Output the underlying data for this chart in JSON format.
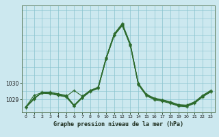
{
  "title": "Graphe pression niveau de la mer (hPa)",
  "bg_color": "#cce8ef",
  "grid_color": "#89c4cf",
  "line_color": "#2d6b2d",
  "xlim": [
    -0.5,
    23.5
  ],
  "ylim": [
    1028.2,
    1034.8
  ],
  "yticks": [
    1029,
    1030
  ],
  "xticks": [
    0,
    1,
    2,
    3,
    4,
    5,
    6,
    7,
    8,
    9,
    10,
    11,
    12,
    13,
    14,
    15,
    16,
    17,
    18,
    19,
    20,
    21,
    22,
    23
  ],
  "series": [
    [
      1028.5,
      1029.0,
      1029.45,
      1029.45,
      1029.35,
      1029.25,
      1028.65,
      1029.15,
      1029.55,
      1029.75,
      1031.6,
      1033.05,
      1033.7,
      1032.45,
      1030.0,
      1029.32,
      1029.08,
      1028.98,
      1028.85,
      1028.68,
      1028.65,
      1028.85,
      1029.25,
      1029.55
    ],
    [
      1028.55,
      1029.05,
      1029.42,
      1029.42,
      1029.32,
      1029.22,
      1028.62,
      1029.12,
      1029.52,
      1029.72,
      1031.55,
      1033.0,
      1033.65,
      1032.4,
      1029.97,
      1029.28,
      1029.05,
      1028.95,
      1028.82,
      1028.65,
      1028.62,
      1028.82,
      1029.22,
      1029.52
    ],
    [
      1028.55,
      1029.25,
      1029.42,
      1029.38,
      1029.28,
      1029.18,
      1029.55,
      1029.2,
      1029.55,
      1029.75,
      1031.6,
      1033.05,
      1033.6,
      1032.38,
      1029.95,
      1029.28,
      1029.05,
      1028.95,
      1028.82,
      1028.65,
      1028.62,
      1028.82,
      1029.22,
      1029.52
    ],
    [
      1028.52,
      1029.08,
      1029.38,
      1029.35,
      1029.25,
      1029.15,
      1028.6,
      1029.1,
      1029.5,
      1029.7,
      1031.52,
      1032.98,
      1033.58,
      1032.35,
      1029.92,
      1029.25,
      1029.02,
      1028.92,
      1028.78,
      1028.62,
      1028.58,
      1028.78,
      1029.18,
      1029.48
    ],
    [
      1028.5,
      1029.1,
      1029.4,
      1029.37,
      1029.27,
      1029.17,
      1028.58,
      1029.08,
      1029.48,
      1029.68,
      1031.5,
      1032.95,
      1033.55,
      1032.32,
      1029.9,
      1029.22,
      1028.98,
      1028.88,
      1028.75,
      1028.58,
      1028.55,
      1028.75,
      1029.15,
      1029.45
    ]
  ]
}
